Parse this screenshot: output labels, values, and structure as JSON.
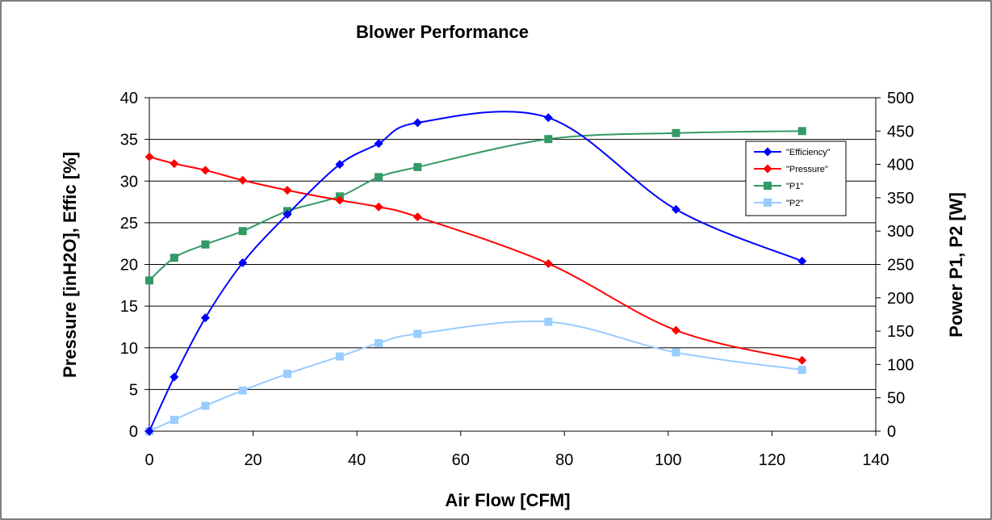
{
  "chart_data": {
    "type": "line",
    "title": "Blower Performance",
    "xlabel": "Air Flow [CFM]",
    "ylabel_left": "Pressure [inH2O], Effic [%]",
    "ylabel_right": "Power P1, P2 [W]",
    "xlim": [
      0,
      140
    ],
    "ylim_left": [
      0,
      40
    ],
    "ylim_right": [
      0,
      500
    ],
    "x_ticks": [
      "0",
      "20",
      "40",
      "60",
      "80",
      "100",
      "120",
      "140"
    ],
    "y_left_ticks": [
      "0",
      "5",
      "10",
      "15",
      "20",
      "25",
      "30",
      "35",
      "40"
    ],
    "y_right_ticks": [
      "0",
      "50",
      "100",
      "150",
      "200",
      "250",
      "300",
      "350",
      "400",
      "450",
      "500"
    ],
    "grid": "horizontal",
    "legend_position": "right",
    "series": [
      {
        "name": "\"Efficiency\"",
        "axis": "left",
        "color": "#0000ff",
        "marker": "diamond",
        "x": [
          0,
          4.8,
          10.8,
          18,
          26.6,
          36.7,
          44.2,
          51.7,
          76.9,
          101.5,
          125.8
        ],
        "values": [
          0,
          6.5,
          13.6,
          20.2,
          26.0,
          32.0,
          34.5,
          37.0,
          37.6,
          26.6,
          20.4
        ]
      },
      {
        "name": "\"Pressure\"",
        "axis": "left",
        "color": "#ff0000",
        "marker": "diamond",
        "x": [
          0,
          4.8,
          10.8,
          18,
          26.6,
          36.7,
          44.2,
          51.7,
          76.9,
          101.5,
          125.8
        ],
        "values": [
          32.9,
          32.1,
          31.3,
          30.1,
          28.9,
          27.7,
          26.9,
          25.7,
          20.1,
          12.1,
          8.5
        ]
      },
      {
        "name": "\"P1\"",
        "axis": "right",
        "color": "#339966",
        "marker": "square",
        "x": [
          0,
          4.8,
          10.8,
          18,
          26.6,
          36.7,
          44.2,
          51.7,
          76.9,
          101.5,
          125.8
        ],
        "values": [
          226,
          260,
          280,
          300,
          330,
          352,
          381,
          396,
          438,
          447,
          450
        ]
      },
      {
        "name": "\"P2\"",
        "axis": "right",
        "color": "#99ccff",
        "marker": "square",
        "x": [
          0,
          4.8,
          10.8,
          18,
          26.6,
          36.7,
          44.2,
          51.7,
          76.9,
          101.5,
          125.8
        ],
        "values": [
          0,
          17,
          38,
          61,
          86,
          112,
          132,
          146,
          164,
          118,
          92
        ]
      }
    ]
  }
}
